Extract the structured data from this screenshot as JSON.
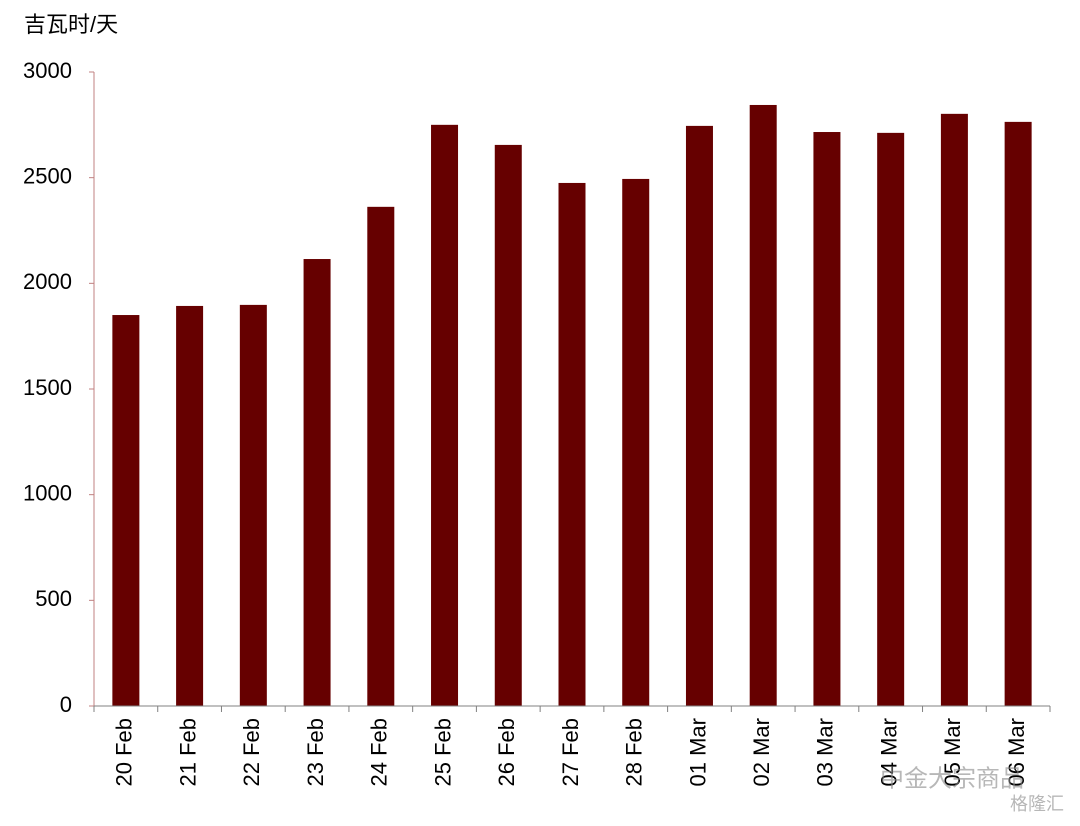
{
  "chart_data": {
    "type": "bar",
    "y_axis_label": "吉瓦时/天",
    "categories": [
      "20 Feb",
      "21 Feb",
      "22 Feb",
      "23 Feb",
      "24 Feb",
      "25 Feb",
      "26 Feb",
      "27 Feb",
      "28 Feb",
      "01 Mar",
      "02 Mar",
      "03 Mar",
      "04 Mar",
      "05 Mar",
      "06 Mar"
    ],
    "values": [
      1850,
      1893,
      1898,
      2115,
      2362,
      2750,
      2655,
      2475,
      2494,
      2745,
      2844,
      2716,
      2712,
      2802,
      2764
    ],
    "color": "#660000",
    "ylim": [
      0,
      3000
    ],
    "yticks": [
      0,
      500,
      1000,
      1500,
      2000,
      2500,
      3000
    ],
    "grid": false,
    "watermark": [
      "中金大宗商品",
      "格隆汇"
    ]
  }
}
